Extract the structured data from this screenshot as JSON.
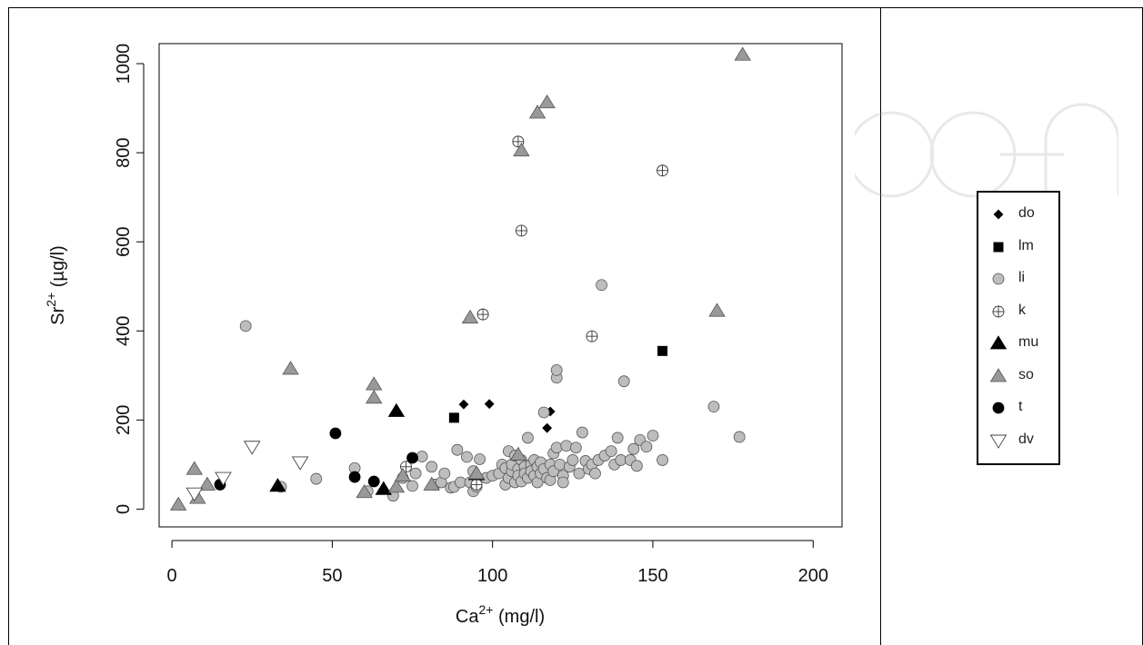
{
  "chart_data": {
    "type": "scatter",
    "xlabel_base": "Ca",
    "xlabel_sup": "2+",
    "xlabel_unit": " (mg/l)",
    "ylabel_base": "Sr",
    "ylabel_sup": "2+",
    "ylabel_unit": " (µg/l)",
    "xlim": [
      -4,
      209
    ],
    "ylim": [
      -40,
      1045
    ],
    "x_ticks": [
      0,
      50,
      100,
      150,
      200
    ],
    "y_ticks": [
      0,
      200,
      400,
      600,
      800,
      1000
    ],
    "legend_placement": "right",
    "series": [
      {
        "name": "do",
        "marker": "diamond",
        "fill": "#000000",
        "points": [
          [
            91,
            235
          ],
          [
            99,
            236
          ],
          [
            117,
            182
          ],
          [
            118,
            219
          ]
        ]
      },
      {
        "name": "lm",
        "marker": "square",
        "fill": "#000000",
        "points": [
          [
            88,
            205
          ],
          [
            153,
            355
          ]
        ]
      },
      {
        "name": "li",
        "marker": "circle",
        "fill": "#bdbdbd",
        "points": [
          [
            23,
            411
          ],
          [
            34,
            50
          ],
          [
            45,
            68
          ],
          [
            57,
            92
          ],
          [
            61,
            40
          ],
          [
            69,
            30
          ],
          [
            72,
            70
          ],
          [
            75,
            52
          ],
          [
            76,
            80
          ],
          [
            78,
            118
          ],
          [
            81,
            95
          ],
          [
            82,
            55
          ],
          [
            84,
            60
          ],
          [
            85,
            80
          ],
          [
            87,
            48
          ],
          [
            88,
            50
          ],
          [
            89,
            133
          ],
          [
            90,
            60
          ],
          [
            92,
            117
          ],
          [
            93,
            60
          ],
          [
            94,
            85
          ],
          [
            94,
            40
          ],
          [
            95,
            50
          ],
          [
            96,
            112
          ],
          [
            98,
            70
          ],
          [
            100,
            75
          ],
          [
            102,
            80
          ],
          [
            103,
            100
          ],
          [
            104,
            92
          ],
          [
            104,
            55
          ],
          [
            105,
            130
          ],
          [
            105,
            70
          ],
          [
            106,
            85
          ],
          [
            106,
            100
          ],
          [
            107,
            120
          ],
          [
            107,
            60
          ],
          [
            108,
            90
          ],
          [
            108,
            75
          ],
          [
            109,
            110
          ],
          [
            109,
            62
          ],
          [
            110,
            95
          ],
          [
            110,
            80
          ],
          [
            111,
            70
          ],
          [
            111,
            160
          ],
          [
            112,
            100
          ],
          [
            112,
            85
          ],
          [
            113,
            75
          ],
          [
            113,
            110
          ],
          [
            114,
            95
          ],
          [
            114,
            60
          ],
          [
            115,
            105
          ],
          [
            115,
            80
          ],
          [
            116,
            90
          ],
          [
            116,
            217
          ],
          [
            117,
            70
          ],
          [
            118,
            100
          ],
          [
            118,
            65
          ],
          [
            119,
            125
          ],
          [
            119,
            85
          ],
          [
            120,
            138
          ],
          [
            120,
            295
          ],
          [
            120,
            312
          ],
          [
            121,
            100
          ],
          [
            122,
            75
          ],
          [
            122,
            60
          ],
          [
            123,
            142
          ],
          [
            124,
            95
          ],
          [
            125,
            110
          ],
          [
            126,
            138
          ],
          [
            127,
            80
          ],
          [
            128,
            172
          ],
          [
            129,
            108
          ],
          [
            130,
            90
          ],
          [
            131,
            100
          ],
          [
            132,
            80
          ],
          [
            133,
            110
          ],
          [
            134,
            503
          ],
          [
            135,
            120
          ],
          [
            137,
            130
          ],
          [
            138,
            100
          ],
          [
            139,
            160
          ],
          [
            140,
            110
          ],
          [
            141,
            287
          ],
          [
            143,
            110
          ],
          [
            144,
            135
          ],
          [
            145,
            97
          ],
          [
            146,
            155
          ],
          [
            148,
            140
          ],
          [
            150,
            165
          ],
          [
            153,
            110
          ],
          [
            169,
            230
          ],
          [
            177,
            162
          ]
        ]
      },
      {
        "name": "k",
        "marker": "circle-plus",
        "fill": "#ffffff",
        "points": [
          [
            73,
            95
          ],
          [
            95,
            55
          ],
          [
            97,
            437
          ],
          [
            108,
            825
          ],
          [
            109,
            625
          ],
          [
            131,
            388
          ],
          [
            153,
            760
          ]
        ]
      },
      {
        "name": "mu",
        "marker": "triangle",
        "fill": "#000000",
        "points": [
          [
            33,
            52
          ],
          [
            66,
            45
          ],
          [
            70,
            220
          ],
          [
            95,
            78
          ]
        ]
      },
      {
        "name": "so",
        "marker": "triangle",
        "fill": "#999999",
        "points": [
          [
            2,
            10
          ],
          [
            7,
            90
          ],
          [
            8,
            25
          ],
          [
            11,
            55
          ],
          [
            37,
            315
          ],
          [
            60,
            38
          ],
          [
            63,
            280
          ],
          [
            63,
            250
          ],
          [
            70,
            50
          ],
          [
            72,
            75
          ],
          [
            81,
            55
          ],
          [
            93,
            430
          ],
          [
            95,
            80
          ],
          [
            108,
            122
          ],
          [
            109,
            805
          ],
          [
            114,
            890
          ],
          [
            117,
            913
          ],
          [
            170,
            445
          ],
          [
            178,
            1020
          ]
        ]
      },
      {
        "name": "t",
        "marker": "circle",
        "fill": "#000000",
        "points": [
          [
            15,
            55
          ],
          [
            51,
            170
          ],
          [
            57,
            72
          ],
          [
            63,
            62
          ],
          [
            75,
            115
          ]
        ]
      },
      {
        "name": "dv",
        "marker": "triangle-down",
        "fill": "#ffffff",
        "points": [
          [
            7,
            35
          ],
          [
            16,
            70
          ],
          [
            25,
            140
          ],
          [
            40,
            105
          ]
        ]
      }
    ]
  }
}
